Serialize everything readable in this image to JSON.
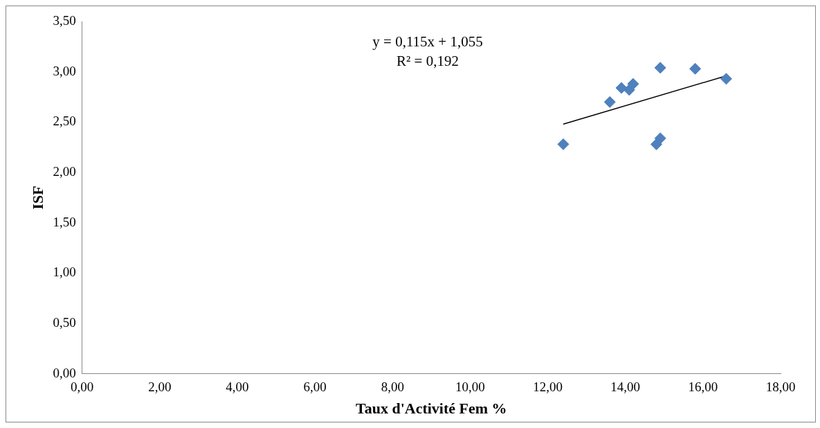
{
  "chart_data": {
    "type": "scatter",
    "xlabel": "Taux d'Activité Fem %",
    "ylabel": "ISF",
    "marker": "diamond",
    "grid": false,
    "legend": false,
    "xlim": [
      0,
      18
    ],
    "xticks": [
      {
        "value": 0,
        "label": "0,00"
      },
      {
        "value": 2,
        "label": "2,00"
      },
      {
        "value": 4,
        "label": "4,00"
      },
      {
        "value": 6,
        "label": "6,00"
      },
      {
        "value": 8,
        "label": "8,00"
      },
      {
        "value": 10,
        "label": "10,00"
      },
      {
        "value": 12,
        "label": "12,00"
      },
      {
        "value": 14,
        "label": "14,00"
      },
      {
        "value": 16,
        "label": "16,00"
      },
      {
        "value": 18,
        "label": "18,00"
      }
    ],
    "ylim": [
      0,
      3.5
    ],
    "yticks": [
      {
        "value": 0,
        "label": "0,00"
      },
      {
        "value": 0.5,
        "label": "0,50"
      },
      {
        "value": 1,
        "label": "1,00"
      },
      {
        "value": 1.5,
        "label": "1,50"
      },
      {
        "value": 2,
        "label": "2,00"
      },
      {
        "value": 2.5,
        "label": "2,50"
      },
      {
        "value": 3,
        "label": "3,00"
      },
      {
        "value": 3.5,
        "label": "3,50"
      }
    ],
    "annotations": [
      "y = 0,115x + 1,055",
      "R² = 0,192"
    ],
    "series": [
      {
        "color": "#4f81bd",
        "x": [
          12.4,
          13.6,
          13.9,
          14.1,
          14.2,
          14.9,
          14.8,
          14.9,
          15.8,
          16.6
        ],
        "values": [
          2.28,
          2.7,
          2.84,
          2.82,
          2.88,
          3.04,
          2.28,
          2.34,
          3.03,
          2.93
        ]
      },
      {
        "type": "line",
        "color": "#000000",
        "marker": "none",
        "x": [
          12.4,
          16.6
        ],
        "values": [
          2.48,
          2.96
        ]
      }
    ]
  }
}
